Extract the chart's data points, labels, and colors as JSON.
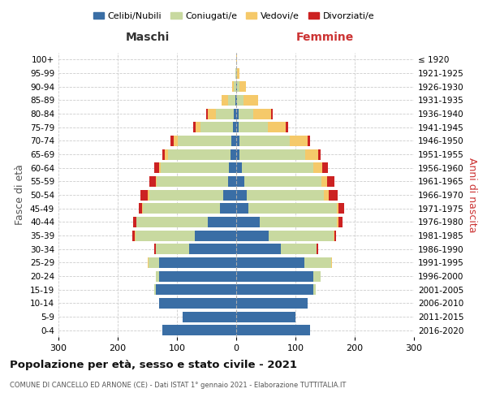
{
  "age_groups": [
    "0-4",
    "5-9",
    "10-14",
    "15-19",
    "20-24",
    "25-29",
    "30-34",
    "35-39",
    "40-44",
    "45-49",
    "50-54",
    "55-59",
    "60-64",
    "65-69",
    "70-74",
    "75-79",
    "80-84",
    "85-89",
    "90-94",
    "95-99",
    "100+"
  ],
  "birth_years": [
    "2016-2020",
    "2011-2015",
    "2006-2010",
    "2001-2005",
    "1996-2000",
    "1991-1995",
    "1986-1990",
    "1981-1985",
    "1976-1980",
    "1971-1975",
    "1966-1970",
    "1961-1965",
    "1956-1960",
    "1951-1955",
    "1946-1950",
    "1941-1945",
    "1936-1940",
    "1931-1935",
    "1926-1930",
    "1921-1925",
    "≤ 1920"
  ],
  "maschi": {
    "celibi": [
      125,
      90,
      130,
      135,
      130,
      130,
      80,
      70,
      48,
      28,
      22,
      14,
      12,
      10,
      8,
      5,
      4,
      2,
      0,
      0,
      0
    ],
    "coniugati": [
      0,
      0,
      0,
      3,
      5,
      18,
      55,
      100,
      120,
      130,
      125,
      120,
      115,
      105,
      90,
      55,
      30,
      12,
      4,
      1,
      0
    ],
    "vedovi": [
      0,
      0,
      0,
      0,
      0,
      1,
      1,
      1,
      1,
      1,
      2,
      2,
      3,
      5,
      8,
      8,
      14,
      10,
      3,
      1,
      0
    ],
    "divorziati": [
      0,
      0,
      0,
      0,
      0,
      1,
      2,
      4,
      5,
      5,
      12,
      10,
      8,
      4,
      5,
      5,
      2,
      0,
      0,
      0,
      0
    ]
  },
  "femmine": {
    "nubili": [
      125,
      100,
      120,
      130,
      130,
      115,
      75,
      55,
      40,
      20,
      18,
      14,
      10,
      6,
      5,
      4,
      4,
      2,
      2,
      0,
      0
    ],
    "coniugate": [
      0,
      0,
      0,
      4,
      12,
      45,
      60,
      110,
      130,
      150,
      130,
      130,
      120,
      110,
      85,
      50,
      25,
      10,
      4,
      2,
      0
    ],
    "vedove": [
      0,
      0,
      0,
      0,
      0,
      1,
      1,
      1,
      2,
      2,
      8,
      10,
      15,
      22,
      30,
      30,
      30,
      25,
      10,
      3,
      1
    ],
    "divorziate": [
      0,
      0,
      0,
      0,
      0,
      1,
      2,
      2,
      8,
      10,
      15,
      12,
      10,
      5,
      5,
      3,
      2,
      0,
      0,
      0,
      0
    ]
  },
  "colors": {
    "celibi_nubili": "#3A6EA5",
    "coniugati": "#C8D9A0",
    "vedovi": "#F5C96A",
    "divorziati": "#CC2222"
  },
  "xlim": 300,
  "title": "Popolazione per età, sesso e stato civile - 2021",
  "subtitle": "COMUNE DI CANCELLO ED ARNONE (CE) - Dati ISTAT 1° gennaio 2021 - Elaborazione TUTTITALIA.IT",
  "xlabel_left": "Maschi",
  "xlabel_right": "Femmine",
  "ylabel_left": "Fasce di età",
  "ylabel_right": "Anni di nascita",
  "background_color": "#ffffff",
  "grid_color": "#cccccc"
}
